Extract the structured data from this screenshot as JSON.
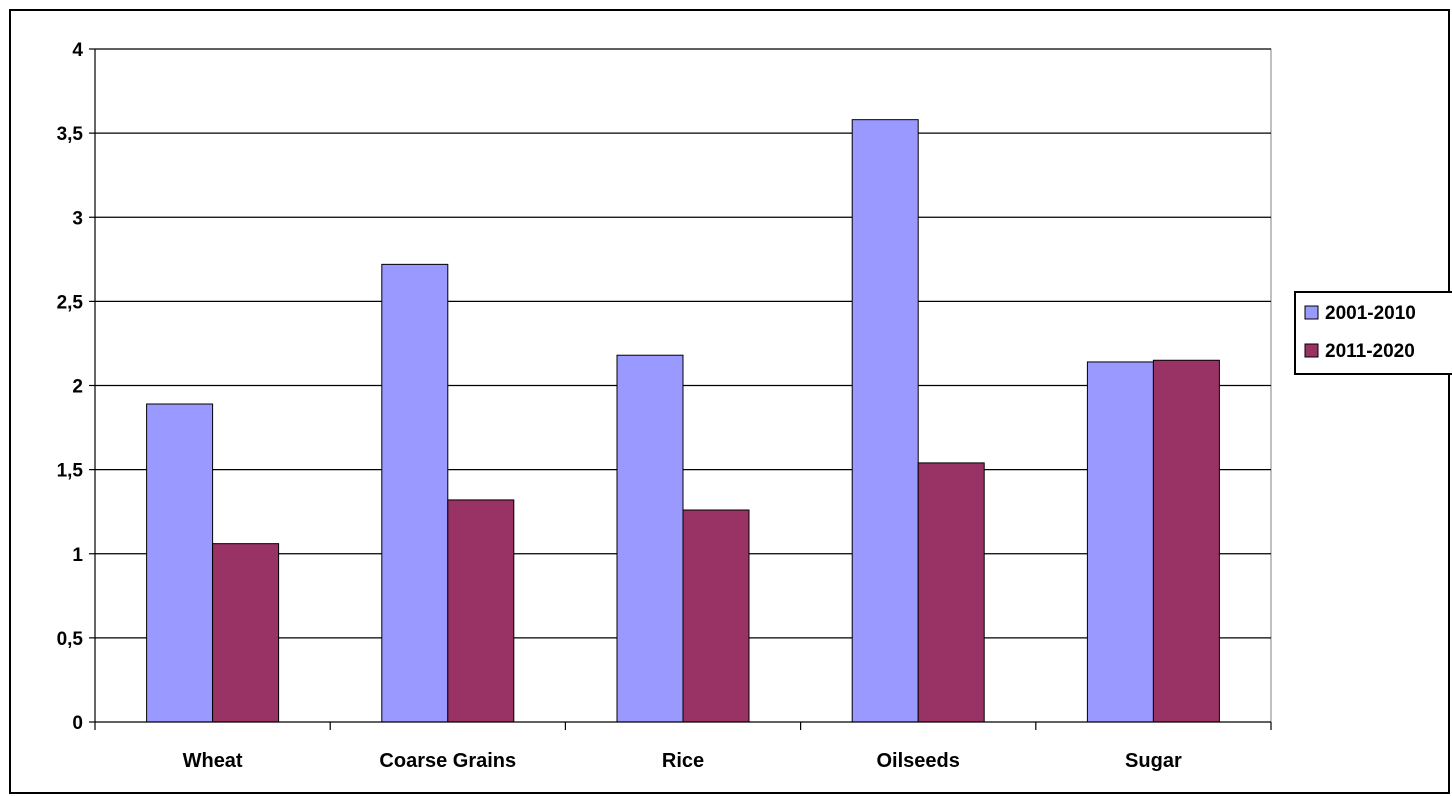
{
  "chart_data": {
    "type": "bar",
    "title": "",
    "xlabel": "",
    "ylabel": "",
    "categories": [
      "Wheat",
      "Coarse Grains",
      "Rice",
      "Oilseeds",
      "Sugar"
    ],
    "series": [
      {
        "name": "2001-2010",
        "color": "#9999ff",
        "values": [
          1.89,
          2.72,
          2.18,
          3.58,
          2.14
        ]
      },
      {
        "name": "2011-2020",
        "color": "#993366",
        "values": [
          1.06,
          1.32,
          1.26,
          1.54,
          2.15
        ]
      }
    ],
    "ylim": [
      0,
      4
    ],
    "yticks": [
      "0",
      "0,5",
      "1",
      "1,5",
      "2",
      "2,5",
      "3",
      "3,5",
      "4"
    ],
    "grid": true,
    "legend": "right"
  }
}
